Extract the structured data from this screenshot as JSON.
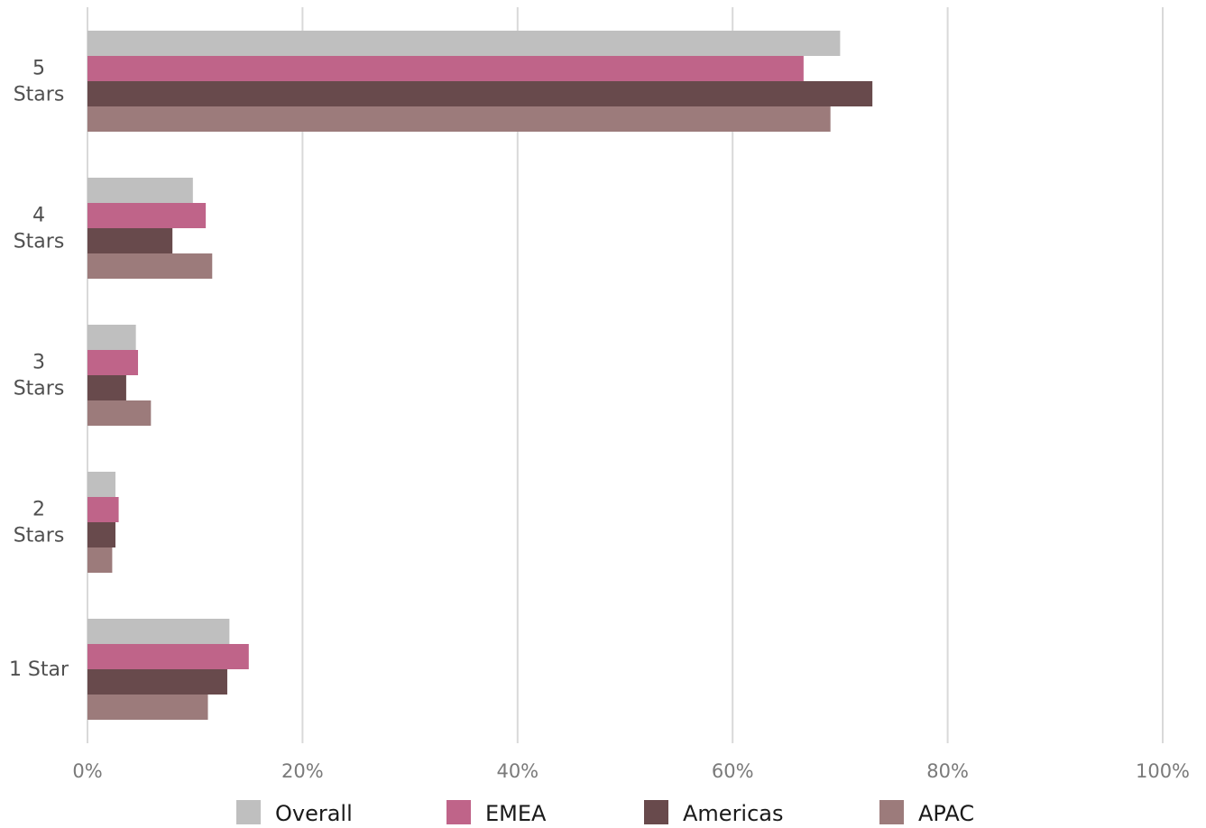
{
  "chart_data": {
    "type": "bar",
    "orientation": "horizontal",
    "categories": [
      [
        "5",
        "Stars"
      ],
      [
        "4",
        "Stars"
      ],
      [
        "3",
        "Stars"
      ],
      [
        "2",
        "Stars"
      ],
      [
        "1 Star"
      ]
    ],
    "series": [
      {
        "name": "Overall",
        "color": "#bfbfbf",
        "values": [
          70,
          9.8,
          4.5,
          2.6,
          13.2
        ]
      },
      {
        "name": "EMEA",
        "color": "#bf6489",
        "values": [
          66.6,
          11,
          4.7,
          2.9,
          15
        ]
      },
      {
        "name": "Americas",
        "color": "#684a4c",
        "values": [
          73,
          7.9,
          3.6,
          2.6,
          13
        ]
      },
      {
        "name": "APAC",
        "color": "#9c7b7b",
        "values": [
          69.1,
          11.6,
          5.9,
          2.3,
          11.2
        ]
      }
    ],
    "x_ticks": [
      "0%",
      "20%",
      "40%",
      "60%",
      "80%",
      "100%"
    ],
    "xlim": [
      0,
      100
    ],
    "grid": true,
    "legend_position": "bottom-center"
  }
}
